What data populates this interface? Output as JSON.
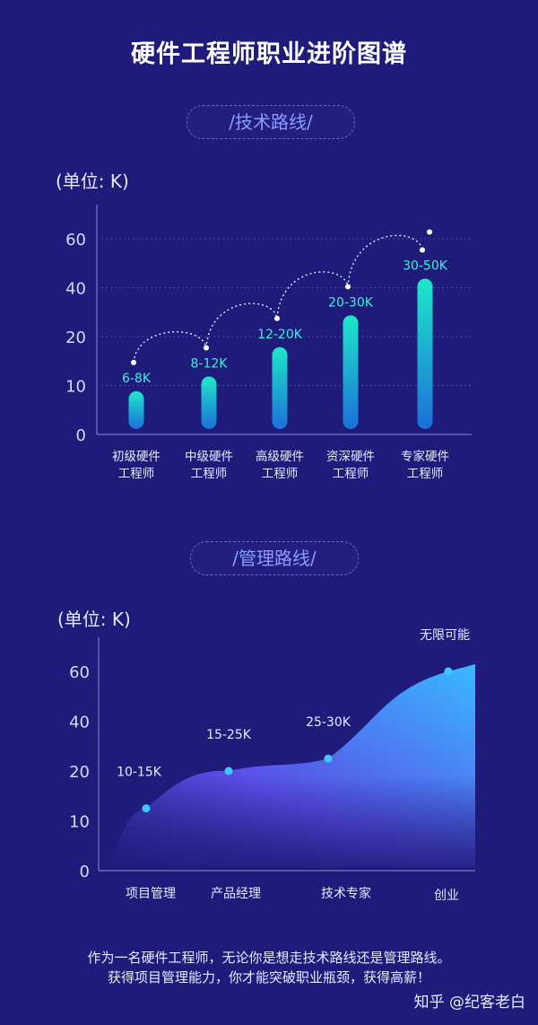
{
  "title": "硬件工程师职业进阶图谱",
  "tech_section": {
    "label": "/技术路线/",
    "unit": "(单位: K)"
  },
  "mgmt_section": {
    "label": "/管理路线/",
    "unit": "(单位: K)"
  },
  "chart_data": [
    {
      "type": "bar",
      "yticks": [
        "0",
        "10",
        "20",
        "40",
        "60"
      ],
      "categories": [
        [
          "初级硬件",
          "工程师"
        ],
        [
          "中级硬件",
          "工程师"
        ],
        [
          "高级硬件",
          "工程师"
        ],
        [
          "资深硬件",
          "工程师"
        ],
        [
          "专家硬件",
          "工程师"
        ]
      ],
      "labels": [
        "6-8K",
        "8-12K",
        "12-20K",
        "20-30K",
        "30-50K"
      ],
      "values": [
        7,
        10,
        16,
        25,
        40
      ],
      "colors": {
        "top": "#1ee8c8",
        "bottom": "#1b6fd8",
        "label": "#3ef0d8"
      }
    },
    {
      "type": "area",
      "yticks": [
        "0",
        "10",
        "20",
        "40",
        "60"
      ],
      "categories": [
        "项目管理",
        "产品经理",
        "技术专家",
        "创业"
      ],
      "labels": [
        "10-15K",
        "15-25K",
        "25-30K",
        "无限可能"
      ],
      "values": [
        12.5,
        20,
        25,
        60
      ],
      "colors": {
        "top": "#3ab8ff",
        "bottom": "#5a4ee8",
        "point": "#3ec8ff"
      }
    }
  ],
  "footer": {
    "line1": "作为一名硬件工程师，无论你是想走技术路线还是管理路线。",
    "line2": "获得项目管理能力，你才能突破职业瓶颈，获得高薪！"
  },
  "watermark": "知乎 @纪客老白"
}
